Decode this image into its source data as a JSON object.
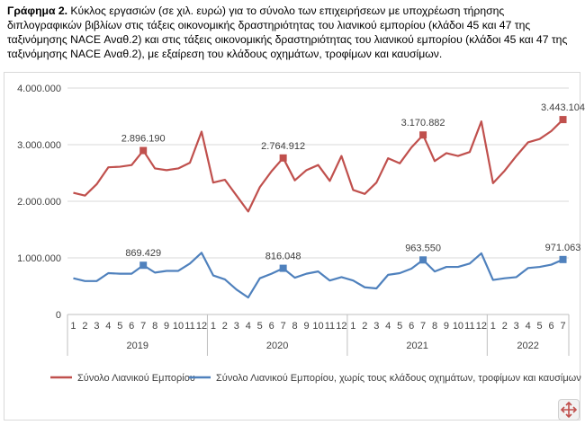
{
  "caption": {
    "label": "Γράφημα 2.",
    "text": " Κύκλος εργασιών (σε χιλ. ευρώ) για το σύνολο των επιχειρήσεων με υποχρέωση τήρησης διπλογραφικών βιβλίων στις τάξεις οικονομικής δραστηριότητας του λιανικού εμπορίου (κλάδοι 45 και 47 της ταξινόμησης NACE Αναθ.2) και στις τάξεις οικονομικής δραστηριότητας του λιανικού εμπορίου (κλάδοι 45 και 47 της ταξινόμησης NACE Αναθ.2), με εξαίρεση του κλάδους οχημάτων, τροφίμων και καυσίμων."
  },
  "zoom_icon": "expand-arrows-icon",
  "chart_data": {
    "type": "line",
    "ylim": [
      0,
      4000000
    ],
    "yticks": [
      "0",
      "1.000.000",
      "2.000.000",
      "3.000.000",
      "4.000.000"
    ],
    "grid": true,
    "legend_position": "bottom",
    "x_months": [
      "1",
      "2",
      "3",
      "4",
      "5",
      "6",
      "7",
      "8",
      "9",
      "10",
      "11",
      "12",
      "1",
      "2",
      "3",
      "4",
      "5",
      "6",
      "7",
      "8",
      "9",
      "10",
      "11",
      "12",
      "1",
      "2",
      "3",
      "4",
      "5",
      "6",
      "7",
      "8",
      "9",
      "10",
      "11",
      "12",
      "1",
      "2",
      "3",
      "4",
      "5",
      "6",
      "7"
    ],
    "x_years": [
      {
        "label": "2019",
        "count": 12
      },
      {
        "label": "2020",
        "count": 12
      },
      {
        "label": "2021",
        "count": 12
      },
      {
        "label": "2022",
        "count": 7
      }
    ],
    "series": [
      {
        "name": "Σύνολο Λιανικού Εμπορίου",
        "color": "#c0504d",
        "values": [
          2150000,
          2100000,
          2300000,
          2600000,
          2610000,
          2640000,
          2896190,
          2580000,
          2550000,
          2580000,
          2680000,
          3230000,
          2330000,
          2380000,
          2100000,
          1820000,
          2250000,
          2530000,
          2764912,
          2370000,
          2550000,
          2640000,
          2360000,
          2800000,
          2200000,
          2130000,
          2330000,
          2760000,
          2670000,
          2950000,
          3170882,
          2710000,
          2850000,
          2800000,
          2870000,
          3410000,
          2320000,
          2540000,
          2800000,
          3040000,
          3100000,
          3240000,
          3443104
        ],
        "highlights": [
          {
            "index": 6,
            "label": "2.896.190"
          },
          {
            "index": 18,
            "label": "2.764.912"
          },
          {
            "index": 30,
            "label": "3.170.882"
          },
          {
            "index": 42,
            "label": "3.443.104"
          }
        ]
      },
      {
        "name": "Σύνολο Λιανικού Εμπορίου, χωρίς τους κλάδους οχημάτων, τροφίμων και καυσίμων",
        "color": "#4f81bd",
        "values": [
          640000,
          590000,
          590000,
          730000,
          720000,
          720000,
          869429,
          740000,
          770000,
          770000,
          900000,
          1090000,
          690000,
          620000,
          440000,
          300000,
          640000,
          720000,
          816048,
          650000,
          720000,
          760000,
          600000,
          660000,
          600000,
          480000,
          460000,
          700000,
          730000,
          810000,
          963550,
          760000,
          840000,
          840000,
          900000,
          1080000,
          610000,
          640000,
          660000,
          820000,
          840000,
          880000,
          971063
        ],
        "highlights": [
          {
            "index": 6,
            "label": "869.429"
          },
          {
            "index": 18,
            "label": "816.048"
          },
          {
            "index": 30,
            "label": "963.550"
          },
          {
            "index": 42,
            "label": "971.063"
          }
        ]
      }
    ]
  }
}
